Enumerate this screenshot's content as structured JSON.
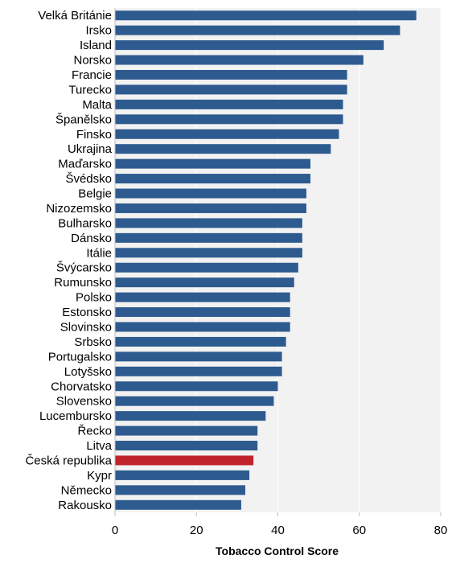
{
  "chart_data": {
    "type": "bar",
    "orientation": "horizontal",
    "xlabel": "Tobacco Control Score",
    "ylabel": "",
    "xlim": [
      0,
      80
    ],
    "xticks": [
      0,
      20,
      40,
      60,
      80
    ],
    "grid": true,
    "bar_color": "#2e5b8f",
    "highlight_color": "#c0232a",
    "plot_background": "#f2f2f2",
    "highlight_category": "Česká republika",
    "categories": [
      "Velká Británie",
      "Irsko",
      "Island",
      "Norsko",
      "Francie",
      "Turecko",
      "Malta",
      "Španělsko",
      "Finsko",
      "Ukrajina",
      "Maďarsko",
      "Švédsko",
      "Belgie",
      "Nizozemsko",
      "Bulharsko",
      "Dánsko",
      "Itálie",
      "Švýcarsko",
      "Rumunsko",
      "Polsko",
      "Estonsko",
      "Slovinsko",
      "Srbsko",
      "Portugalsko",
      "Lotyšsko",
      "Chorvatsko",
      "Slovensko",
      "Lucembursko",
      "Řecko",
      "Litva",
      "Česká republika",
      "Kypr",
      "Německo",
      "Rakousko"
    ],
    "values": [
      74,
      70,
      66,
      61,
      57,
      57,
      56,
      56,
      55,
      53,
      48,
      48,
      47,
      47,
      46,
      46,
      46,
      45,
      44,
      43,
      43,
      43,
      42,
      41,
      41,
      40,
      39,
      37,
      35,
      35,
      34,
      33,
      32,
      31
    ]
  }
}
